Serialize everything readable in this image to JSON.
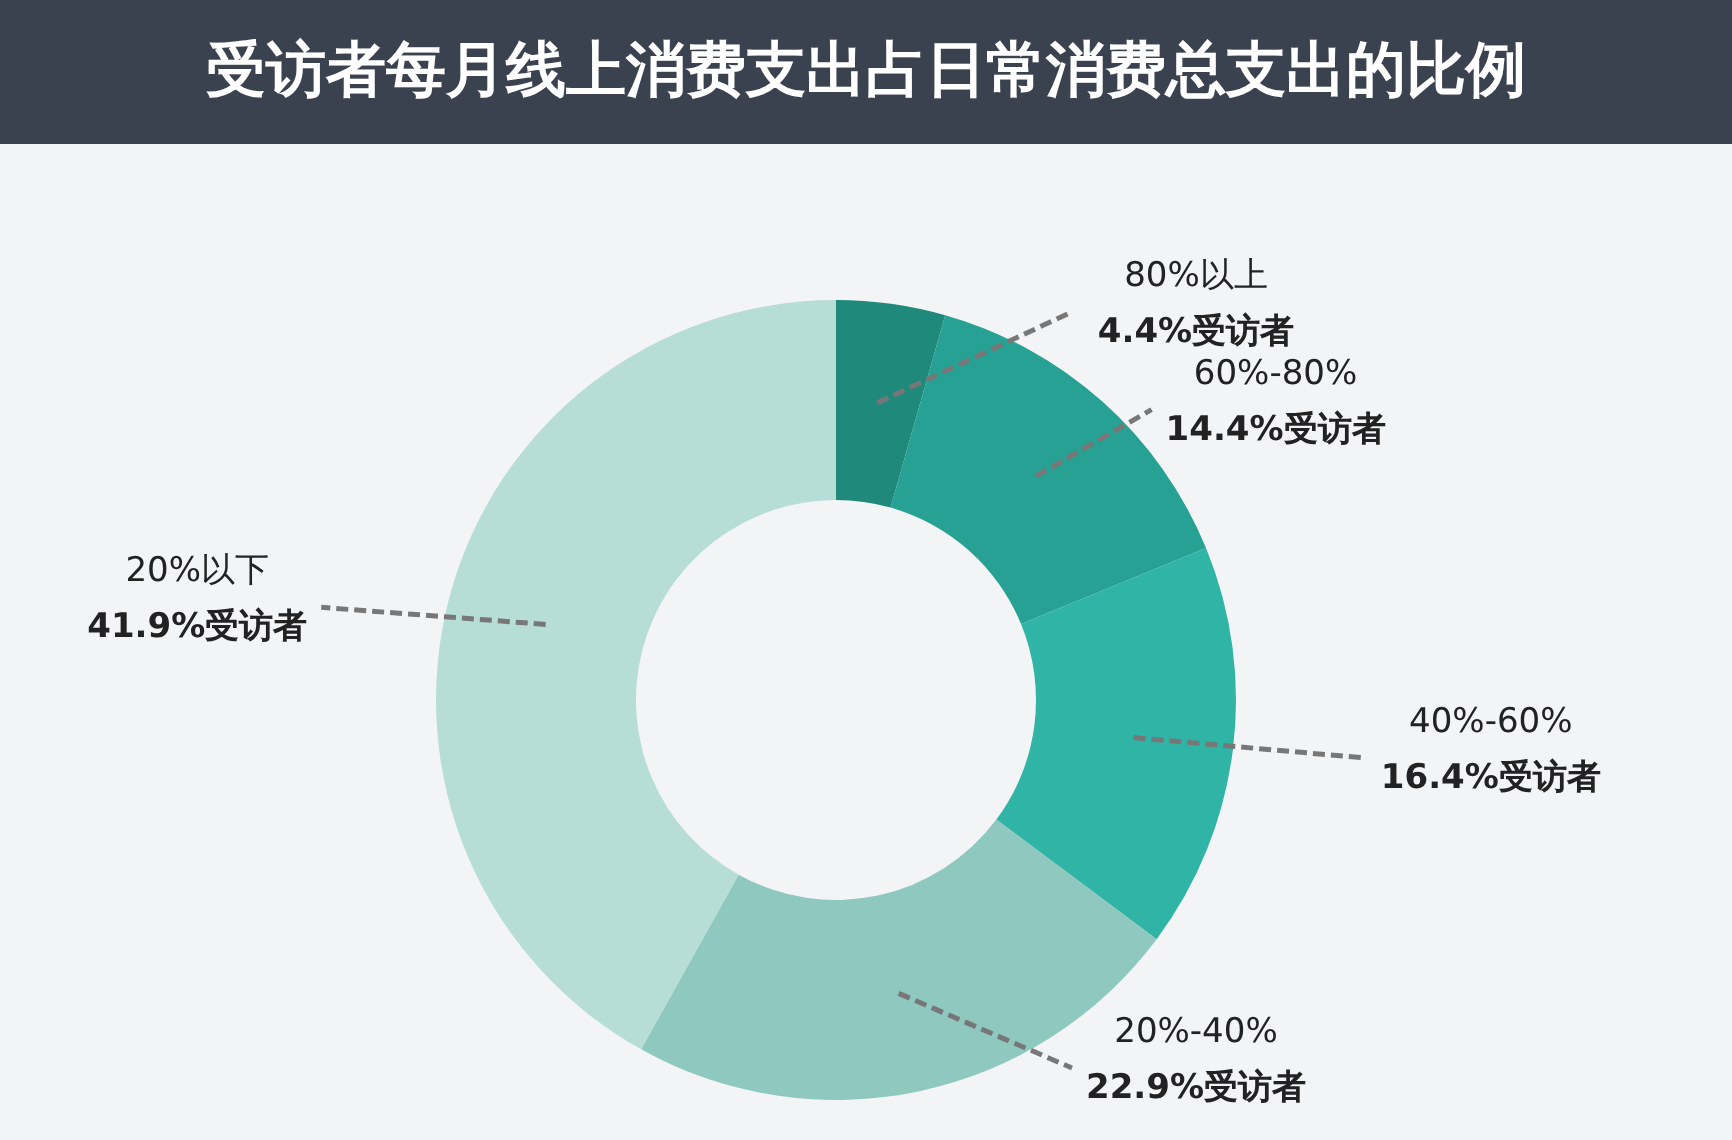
{
  "chart_data": {
    "type": "donut",
    "title": "受访者每月线上消费支出占日常消费总支出的比例",
    "categories": [
      "80%以上",
      "60%-80%",
      "40%-60%",
      "20%-40%",
      "20%以下"
    ],
    "values": [
      4.4,
      14.4,
      16.4,
      22.9,
      41.9
    ],
    "colors": [
      "#1f8a7b",
      "#27a193",
      "#2fb4a6",
      "#8ec8bf",
      "#b6ddd6"
    ],
    "value_labels": [
      "4.4%受访者",
      "14.4%受访者",
      "16.4%受访者",
      "22.9%受访者",
      "41.9%受访者"
    ]
  }
}
